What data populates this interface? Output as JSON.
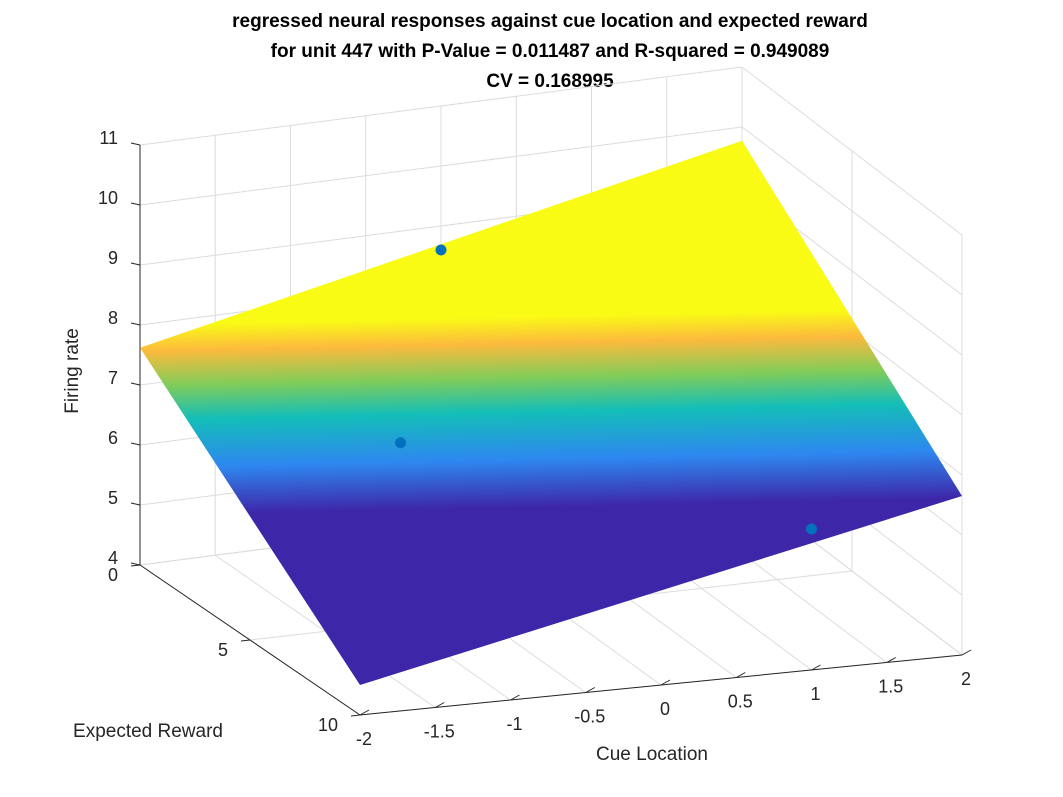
{
  "chart_data": {
    "type": "surface",
    "title": [
      "regressed neural responses against cue location and expected reward",
      "for unit 447 with P-Value = 0.011487 and R-squared = 0.949089",
      "CV = 0.168995"
    ],
    "xlabel": "Cue Location",
    "ylabel": "Expected Reward",
    "zlabel": "Firing rate",
    "xlim": [
      -2,
      2
    ],
    "ylim": [
      0,
      10
    ],
    "zlim": [
      4,
      11
    ],
    "x_ticks": [
      -2,
      -1.5,
      -1,
      -0.5,
      0,
      0.5,
      1,
      1.5,
      2
    ],
    "x_tick_labels": [
      "-2",
      "-1.5",
      "-1",
      "-0.5",
      "0",
      "0.5",
      "1",
      "1.5",
      "2"
    ],
    "y_ticks": [
      0,
      5,
      10
    ],
    "y_tick_labels": [
      "0",
      "5",
      "10"
    ],
    "z_ticks": [
      4,
      5,
      6,
      7,
      8,
      9,
      10,
      11
    ],
    "z_tick_labels": [
      "4",
      "5",
      "6",
      "7",
      "8",
      "9",
      "10",
      "11"
    ],
    "grid": true,
    "colormap": "parula",
    "plane_corners": [
      {
        "x": -2,
        "y": 0,
        "z": 7.62
      },
      {
        "x": 2,
        "y": 0,
        "z": 9.77
      },
      {
        "x": 2,
        "y": 10,
        "z": 6.65
      },
      {
        "x": -2,
        "y": 10,
        "z": 4.5
      }
    ],
    "points": [
      {
        "x": -1,
        "y": 5,
        "z": 7.0
      },
      {
        "x": 0,
        "y": 0,
        "z": 8.6
      },
      {
        "x": 1,
        "y": 10,
        "z": 6.35
      }
    ],
    "point_color": "#0072BD",
    "colors": {
      "parula_low": "#3E26A8",
      "parula_mid_blue": "#2E87F0",
      "parula_cyan": "#13BEB8",
      "parula_green": "#81CC59",
      "parula_orange": "#FCBA3D",
      "parula_high": "#F9FB15"
    }
  }
}
